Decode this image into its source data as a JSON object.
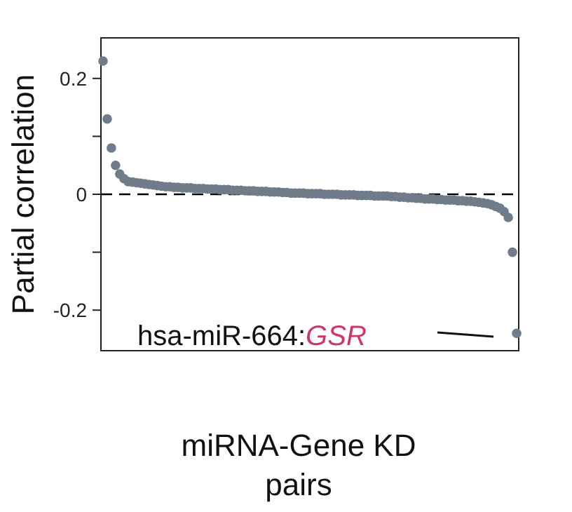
{
  "chart_data": {
    "type": "scatter",
    "ylabel": "Partial correlation",
    "xlabel": "miRNA-Gene KD pairs",
    "categories": [
      null,
      null,
      null,
      null,
      null,
      null,
      null,
      null,
      null,
      null,
      null,
      null,
      null,
      null,
      null,
      null,
      null,
      null,
      null,
      null,
      null,
      null,
      null,
      null,
      null,
      null,
      null,
      null,
      null,
      null,
      null,
      null,
      null,
      null,
      null,
      null,
      null,
      null,
      null,
      null,
      null,
      null,
      null,
      null,
      null,
      null,
      null,
      null,
      null,
      null,
      null,
      null,
      null,
      null,
      null,
      null,
      null,
      null,
      null,
      null,
      null,
      null,
      null,
      null,
      null,
      null,
      null,
      null,
      null,
      null,
      null,
      null,
      null,
      null,
      null,
      null,
      null,
      null,
      null,
      null,
      null,
      null,
      null,
      null,
      null,
      null,
      null,
      null,
      null,
      null,
      null,
      null,
      null,
      null,
      null,
      null,
      null,
      null,
      null,
      null
    ],
    "values": [
      0.23,
      0.13,
      0.08,
      0.05,
      0.035,
      0.027,
      0.022,
      0.021,
      0.02,
      0.019,
      0.018,
      0.017,
      0.016,
      0.015,
      0.014,
      0.013,
      0.013,
      0.012,
      0.012,
      0.011,
      0.011,
      0.011,
      0.01,
      0.01,
      0.01,
      0.009,
      0.009,
      0.009,
      0.008,
      0.008,
      0.008,
      0.007,
      0.007,
      0.007,
      0.006,
      0.006,
      0.006,
      0.005,
      0.005,
      0.005,
      0.004,
      0.004,
      0.004,
      0.003,
      0.003,
      0.002,
      0.002,
      0.002,
      0.002,
      0.001,
      0.001,
      0.001,
      0.001,
      0.0,
      0.0,
      0.0,
      0.0,
      -0.001,
      -0.001,
      -0.001,
      -0.001,
      -0.002,
      -0.002,
      -0.002,
      -0.002,
      -0.003,
      -0.003,
      -0.003,
      -0.003,
      -0.004,
      -0.004,
      -0.005,
      -0.005,
      -0.006,
      -0.006,
      -0.007,
      -0.007,
      -0.008,
      -0.008,
      -0.008,
      -0.009,
      -0.009,
      -0.01,
      -0.01,
      -0.01,
      -0.011,
      -0.011,
      -0.012,
      -0.012,
      -0.013,
      -0.014,
      -0.015,
      -0.016,
      -0.018,
      -0.021,
      -0.024,
      -0.03,
      -0.04,
      -0.1,
      -0.24
    ],
    "color": "#6f7c8a",
    "marker": "circle",
    "ylim": [
      -0.27,
      0.27
    ],
    "yticks": [
      0.2,
      {
        "value": 0.1,
        "label": null
      },
      0,
      {
        "value": -0.1,
        "label": null
      },
      -0.2
    ],
    "tick_labels": "y",
    "grid": false,
    "ref_lines": [
      {
        "axis": "y",
        "value": 0,
        "color": "#000000",
        "line_style": "dashed"
      }
    ],
    "annotations": [
      "hsa-miR-664:GSR"
    ]
  }
}
